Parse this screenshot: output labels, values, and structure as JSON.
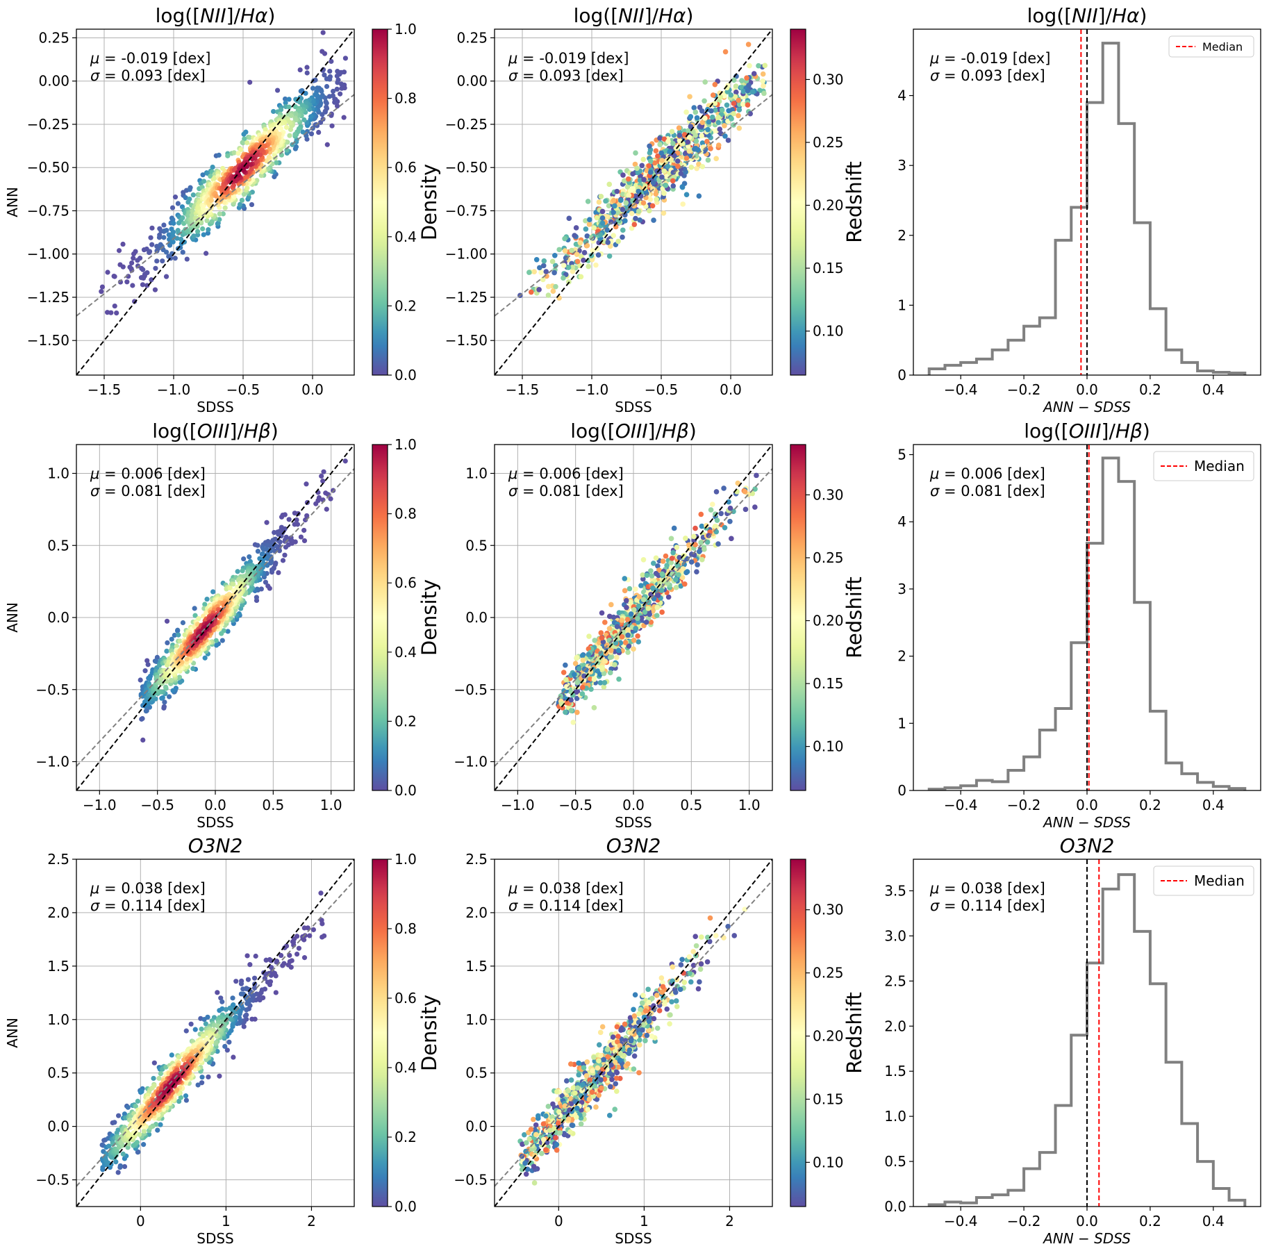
{
  "figure": {
    "x_label": "SDSS",
    "y_label": "ANN",
    "density_colorbar_label": "Density",
    "redshift_colorbar_label": "Redshift",
    "hist_x_label": "ANN − SDSS",
    "legend_label": "Median",
    "colors": {
      "identity_line": "#000000",
      "fit_line": "#808080",
      "grid": "#b0b0b0",
      "histogram": "#808080",
      "median_line": "#ff0000",
      "zero_line": "#000000"
    },
    "colormap": "Spectral_r",
    "colormap_stops": [
      "#5e4fa2",
      "#3288bd",
      "#66c2a5",
      "#abdda4",
      "#e6f598",
      "#ffffbf",
      "#fee08b",
      "#fdae61",
      "#f46d43",
      "#d53e4f",
      "#9e0142"
    ]
  },
  "chart_data": [
    {
      "type": "scatter",
      "panel": "density",
      "title": "log([NII]/Hα)",
      "mu_text": "μ = -0.019 [dex]",
      "sigma_text": "σ = 0.093 [dex]",
      "xlim": [
        -1.7,
        0.3
      ],
      "ylim": [
        -1.7,
        0.3
      ],
      "xticks": [
        -1.5,
        -1.0,
        -0.5,
        0.0
      ],
      "xtick_labels": [
        "−1.5",
        "−1.0",
        "−0.5",
        "0.0"
      ],
      "yticks": [
        -1.5,
        -1.25,
        -1.0,
        -0.75,
        -0.5,
        -0.25,
        0.0,
        0.25
      ],
      "ytick_labels": [
        "−1.50",
        "−1.25",
        "−1.00",
        "−0.75",
        "−0.50",
        "−0.25",
        "0.00",
        "0.25"
      ],
      "fit": {
        "slope": 0.64,
        "intercept": -0.27
      },
      "bulk": {
        "xmin": -1.55,
        "xmax": 0.25,
        "slope": 0.74,
        "intercept": -0.14,
        "scatter": 0.09,
        "peak_x": -0.5,
        "n": 900
      },
      "colorbar": {
        "min": 0.0,
        "max": 1.0,
        "ticks": [
          0.0,
          0.2,
          0.4,
          0.6,
          0.8,
          1.0
        ],
        "tick_labels": [
          "0.0",
          "0.2",
          "0.4",
          "0.6",
          "0.8",
          "1.0"
        ]
      }
    },
    {
      "type": "scatter",
      "panel": "redshift",
      "title": "log([NII]/Hα)",
      "mu_text": "μ = -0.019 [dex]",
      "sigma_text": "σ = 0.093 [dex]",
      "xlim": [
        -1.7,
        0.3
      ],
      "ylim": [
        -1.7,
        0.3
      ],
      "xticks": [
        -1.5,
        -1.0,
        -0.5,
        0.0
      ],
      "xtick_labels": [
        "−1.5",
        "−1.0",
        "−0.5",
        "0.0"
      ],
      "yticks": [
        -1.5,
        -1.25,
        -1.0,
        -0.75,
        -0.5,
        -0.25,
        0.0,
        0.25
      ],
      "ytick_labels": [
        "−1.50",
        "−1.25",
        "−1.00",
        "−0.75",
        "−0.50",
        "−0.25",
        "0.00",
        "0.25"
      ],
      "fit": {
        "slope": 0.64,
        "intercept": -0.27
      },
      "bulk": {
        "xmin": -1.55,
        "xmax": 0.25,
        "slope": 0.74,
        "intercept": -0.14,
        "scatter": 0.09,
        "peak_x": -0.5,
        "n": 900
      },
      "colorbar": {
        "min": 0.065,
        "max": 0.34,
        "ticks": [
          0.1,
          0.15,
          0.2,
          0.25,
          0.3
        ],
        "tick_labels": [
          "0.10",
          "0.15",
          "0.20",
          "0.25",
          "0.30"
        ]
      }
    },
    {
      "type": "histogram",
      "title": "log([NII]/Hα)",
      "mu_text": "μ = -0.019 [dex]",
      "sigma_text": "σ = 0.093 [dex]",
      "xlim": [
        -0.55,
        0.55
      ],
      "ylim": [
        0,
        4.95
      ],
      "xticks": [
        -0.4,
        -0.2,
        0.0,
        0.2,
        0.4
      ],
      "xtick_labels": [
        "−0.4",
        "−0.2",
        "0.0",
        "0.2",
        "0.4"
      ],
      "yticks": [
        0,
        1,
        2,
        3,
        4
      ],
      "ytick_labels": [
        "0",
        "1",
        "2",
        "3",
        "4"
      ],
      "bin_edges": [
        -0.5,
        -0.45,
        -0.4,
        -0.35,
        -0.3,
        -0.25,
        -0.2,
        -0.15,
        -0.1,
        -0.05,
        0.0,
        0.05,
        0.1,
        0.15,
        0.2,
        0.25,
        0.3,
        0.35,
        0.4,
        0.45,
        0.5
      ],
      "values": [
        0.09,
        0.14,
        0.18,
        0.23,
        0.36,
        0.5,
        0.7,
        0.82,
        1.93,
        2.4,
        3.9,
        4.75,
        3.6,
        2.18,
        0.95,
        0.36,
        0.18,
        0.06,
        0.04,
        0.03
      ],
      "median": -0.019,
      "legend_size": "small"
    },
    {
      "type": "scatter",
      "panel": "density",
      "title": "log([OIII]/Hβ)",
      "mu_text": "μ = 0.006 [dex]",
      "sigma_text": "σ = 0.081 [dex]",
      "xlim": [
        -1.2,
        1.2
      ],
      "ylim": [
        -1.2,
        1.2
      ],
      "xticks": [
        -1.0,
        -0.5,
        0.0,
        0.5,
        1.0
      ],
      "xtick_labels": [
        "−1.0",
        "−0.5",
        "0.0",
        "0.5",
        "1.0"
      ],
      "yticks": [
        -1.0,
        -0.5,
        0.0,
        0.5,
        1.0
      ],
      "ytick_labels": [
        "−1.0",
        "−0.5",
        "0.0",
        "0.5",
        "1.0"
      ],
      "fit": {
        "slope": 0.86,
        "intercept": 0.0
      },
      "bulk": {
        "xmin": -0.65,
        "xmax": 1.15,
        "slope": 0.9,
        "intercept": 0.0,
        "scatter": 0.09,
        "peak_x": -0.1,
        "n": 900
      },
      "colorbar": {
        "min": 0.0,
        "max": 1.0,
        "ticks": [
          0.0,
          0.2,
          0.4,
          0.6,
          0.8,
          1.0
        ],
        "tick_labels": [
          "0.0",
          "0.2",
          "0.4",
          "0.6",
          "0.8",
          "1.0"
        ]
      }
    },
    {
      "type": "scatter",
      "panel": "redshift",
      "title": "log([OIII]/Hβ)",
      "mu_text": "μ = 0.006 [dex]",
      "sigma_text": "σ = 0.081 [dex]",
      "xlim": [
        -1.2,
        1.2
      ],
      "ylim": [
        -1.2,
        1.2
      ],
      "xticks": [
        -1.0,
        -0.5,
        0.0,
        0.5,
        1.0
      ],
      "xtick_labels": [
        "−1.0",
        "−0.5",
        "0.0",
        "0.5",
        "1.0"
      ],
      "yticks": [
        -1.0,
        -0.5,
        0.0,
        0.5,
        1.0
      ],
      "ytick_labels": [
        "−1.0",
        "−0.5",
        "0.0",
        "0.5",
        "1.0"
      ],
      "fit": {
        "slope": 0.86,
        "intercept": 0.0
      },
      "bulk": {
        "xmin": -0.65,
        "xmax": 1.15,
        "slope": 0.9,
        "intercept": 0.0,
        "scatter": 0.09,
        "peak_x": -0.1,
        "n": 900
      },
      "colorbar": {
        "min": 0.065,
        "max": 0.34,
        "ticks": [
          0.1,
          0.15,
          0.2,
          0.25,
          0.3
        ],
        "tick_labels": [
          "0.10",
          "0.15",
          "0.20",
          "0.25",
          "0.30"
        ]
      }
    },
    {
      "type": "histogram",
      "title": "log([OIII]/Hβ)",
      "mu_text": "μ = 0.006 [dex]",
      "sigma_text": "σ = 0.081 [dex]",
      "xlim": [
        -0.55,
        0.55
      ],
      "ylim": [
        0,
        5.15
      ],
      "xticks": [
        -0.4,
        -0.2,
        0.0,
        0.2,
        0.4
      ],
      "xtick_labels": [
        "−0.4",
        "−0.2",
        "0.0",
        "0.2",
        "0.4"
      ],
      "yticks": [
        0,
        1,
        2,
        3,
        4,
        5
      ],
      "ytick_labels": [
        "0",
        "1",
        "2",
        "3",
        "4",
        "5"
      ],
      "bin_edges": [
        -0.5,
        -0.45,
        -0.4,
        -0.35,
        -0.3,
        -0.25,
        -0.2,
        -0.15,
        -0.1,
        -0.05,
        0.0,
        0.05,
        0.1,
        0.15,
        0.2,
        0.25,
        0.3,
        0.35,
        0.4,
        0.45,
        0.5
      ],
      "values": [
        0.02,
        0.04,
        0.07,
        0.15,
        0.13,
        0.3,
        0.5,
        0.9,
        1.22,
        2.2,
        3.68,
        4.95,
        4.6,
        2.8,
        1.18,
        0.41,
        0.25,
        0.12,
        0.06,
        0.03
      ],
      "median": 0.006,
      "legend_size": "large"
    },
    {
      "type": "scatter",
      "panel": "density",
      "title": "O3N2",
      "mu_text": "μ = 0.038 [dex]",
      "sigma_text": "σ = 0.114 [dex]",
      "xlim": [
        -0.75,
        2.5
      ],
      "ylim": [
        -0.75,
        2.5
      ],
      "xticks": [
        0,
        1,
        2
      ],
      "xtick_labels": [
        "0",
        "1",
        "2"
      ],
      "yticks": [
        -0.5,
        0.0,
        0.5,
        1.0,
        1.5,
        2.0,
        2.5
      ],
      "ytick_labels": [
        "−0.5",
        "0.0",
        "0.5",
        "1.0",
        "1.5",
        "2.0",
        "2.5"
      ],
      "fit": {
        "slope": 0.88,
        "intercept": 0.1
      },
      "bulk": {
        "xmin": -0.45,
        "xmax": 2.3,
        "slope": 0.9,
        "intercept": 0.07,
        "scatter": 0.12,
        "peak_x": 0.35,
        "n": 900
      },
      "colorbar": {
        "min": 0.0,
        "max": 1.0,
        "ticks": [
          0.0,
          0.2,
          0.4,
          0.6,
          0.8,
          1.0
        ],
        "tick_labels": [
          "0.0",
          "0.2",
          "0.4",
          "0.6",
          "0.8",
          "1.0"
        ]
      }
    },
    {
      "type": "scatter",
      "panel": "redshift",
      "title": "O3N2",
      "mu_text": "μ = 0.038 [dex]",
      "sigma_text": "σ = 0.114 [dex]",
      "xlim": [
        -0.75,
        2.5
      ],
      "ylim": [
        -0.75,
        2.5
      ],
      "xticks": [
        0,
        1,
        2
      ],
      "xtick_labels": [
        "0",
        "1",
        "2"
      ],
      "yticks": [
        -0.5,
        0.0,
        0.5,
        1.0,
        1.5,
        2.0,
        2.5
      ],
      "ytick_labels": [
        "−0.5",
        "0.0",
        "0.5",
        "1.0",
        "1.5",
        "2.0",
        "2.5"
      ],
      "fit": {
        "slope": 0.88,
        "intercept": 0.1
      },
      "bulk": {
        "xmin": -0.45,
        "xmax": 2.3,
        "slope": 0.9,
        "intercept": 0.07,
        "scatter": 0.12,
        "peak_x": 0.35,
        "n": 900
      },
      "colorbar": {
        "min": 0.065,
        "max": 0.34,
        "ticks": [
          0.1,
          0.15,
          0.2,
          0.25,
          0.3
        ],
        "tick_labels": [
          "0.10",
          "0.15",
          "0.20",
          "0.25",
          "0.30"
        ]
      }
    },
    {
      "type": "histogram",
      "title": "O3N2",
      "mu_text": "μ = 0.038 [dex]",
      "sigma_text": "σ = 0.114 [dex]",
      "xlim": [
        -0.55,
        0.55
      ],
      "ylim": [
        0,
        3.85
      ],
      "xticks": [
        -0.4,
        -0.2,
        0.0,
        0.2,
        0.4
      ],
      "xtick_labels": [
        "−0.4",
        "−0.2",
        "0.0",
        "0.2",
        "0.4"
      ],
      "yticks": [
        0.0,
        0.5,
        1.0,
        1.5,
        2.0,
        2.5,
        3.0,
        3.5
      ],
      "ytick_labels": [
        "0.0",
        "0.5",
        "1.0",
        "1.5",
        "2.0",
        "2.5",
        "3.0",
        "3.5"
      ],
      "bin_edges": [
        -0.5,
        -0.45,
        -0.4,
        -0.35,
        -0.3,
        -0.25,
        -0.2,
        -0.15,
        -0.1,
        -0.05,
        0.0,
        0.05,
        0.1,
        0.15,
        0.2,
        0.25,
        0.3,
        0.35,
        0.4,
        0.45,
        0.5
      ],
      "values": [
        0.02,
        0.05,
        0.04,
        0.1,
        0.13,
        0.18,
        0.42,
        0.6,
        1.12,
        1.9,
        2.7,
        3.52,
        3.68,
        3.05,
        2.47,
        1.6,
        0.92,
        0.5,
        0.2,
        0.07
      ],
      "median": 0.038,
      "legend_size": "large"
    }
  ]
}
